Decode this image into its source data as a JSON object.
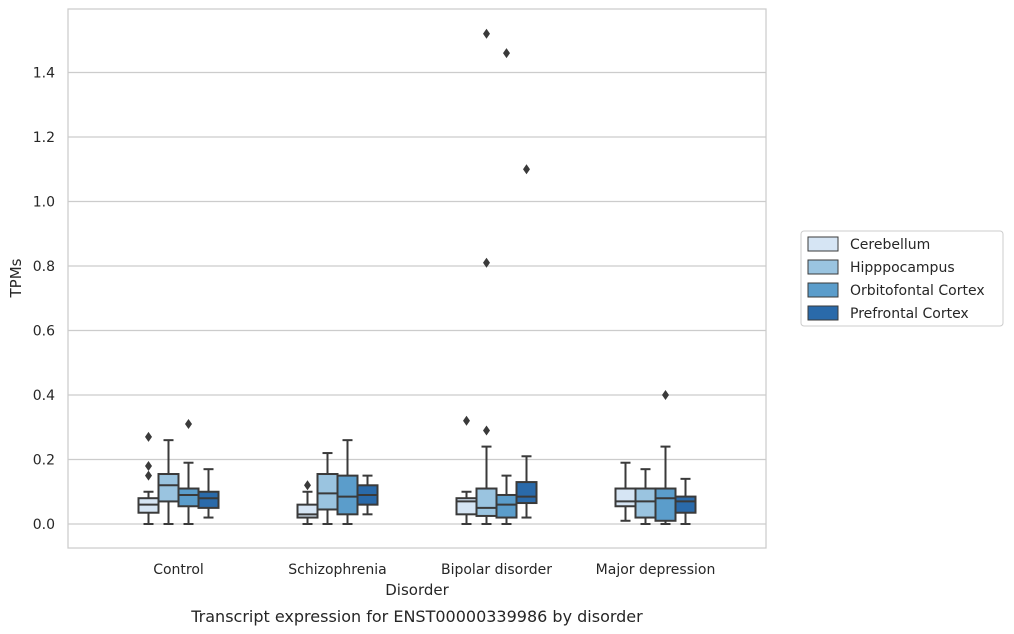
{
  "chart_data": {
    "type": "box",
    "caption": "Transcript expression for ENST00000339986 by disorder",
    "xlabel": "Disorder",
    "ylabel": "TPMs",
    "ylim": [
      -0.075,
      1.6
    ],
    "yticks": [
      0.0,
      0.2,
      0.4,
      0.6,
      0.8,
      1.0,
      1.2,
      1.4
    ],
    "ytick_labels": [
      "0.0",
      "0.2",
      "0.4",
      "0.6",
      "0.8",
      "1.0",
      "1.2",
      "1.4"
    ],
    "grid": "horizontal",
    "legend_position": "right",
    "categories": [
      "Control",
      "Schizophrenia",
      "Bipolar disorder",
      "Major depression"
    ],
    "series": [
      {
        "name": "Cerebellum",
        "color": "#d6e5f4",
        "boxes": [
          {
            "whislo": 0.0,
            "q1": 0.035,
            "med": 0.06,
            "q3": 0.08,
            "whishi": 0.1,
            "fliers": [
              0.15,
              0.18,
              0.27
            ]
          },
          {
            "whislo": 0.0,
            "q1": 0.02,
            "med": 0.03,
            "q3": 0.06,
            "whishi": 0.1,
            "fliers": [
              0.12
            ]
          },
          {
            "whislo": 0.0,
            "q1": 0.03,
            "med": 0.07,
            "q3": 0.08,
            "whishi": 0.1,
            "fliers": [
              0.32
            ]
          },
          {
            "whislo": 0.01,
            "q1": 0.055,
            "med": 0.07,
            "q3": 0.11,
            "whishi": 0.19,
            "fliers": []
          }
        ]
      },
      {
        "name": "Hipppocampus",
        "color": "#9ac4e0",
        "boxes": [
          {
            "whislo": 0.0,
            "q1": 0.07,
            "med": 0.12,
            "q3": 0.155,
            "whishi": 0.26,
            "fliers": []
          },
          {
            "whislo": 0.0,
            "q1": 0.045,
            "med": 0.095,
            "q3": 0.155,
            "whishi": 0.22,
            "fliers": []
          },
          {
            "whislo": 0.0,
            "q1": 0.025,
            "med": 0.05,
            "q3": 0.11,
            "whishi": 0.24,
            "fliers": [
              0.29,
              0.81,
              1.52
            ]
          },
          {
            "whislo": 0.0,
            "q1": 0.02,
            "med": 0.07,
            "q3": 0.11,
            "whishi": 0.17,
            "fliers": []
          }
        ]
      },
      {
        "name": "Orbitofontal Cortex",
        "color": "#5b9dcb",
        "boxes": [
          {
            "whislo": 0.0,
            "q1": 0.055,
            "med": 0.09,
            "q3": 0.11,
            "whishi": 0.19,
            "fliers": [
              0.31
            ]
          },
          {
            "whislo": 0.0,
            "q1": 0.03,
            "med": 0.085,
            "q3": 0.15,
            "whishi": 0.26,
            "fliers": []
          },
          {
            "whislo": 0.0,
            "q1": 0.02,
            "med": 0.06,
            "q3": 0.09,
            "whishi": 0.15,
            "fliers": [
              1.46
            ]
          },
          {
            "whislo": 0.0,
            "q1": 0.01,
            "med": 0.08,
            "q3": 0.11,
            "whishi": 0.24,
            "fliers": [
              0.4
            ]
          }
        ]
      },
      {
        "name": "Prefrontal Cortex",
        "color": "#2a6aaa",
        "boxes": [
          {
            "whislo": 0.02,
            "q1": 0.05,
            "med": 0.08,
            "q3": 0.1,
            "whishi": 0.17,
            "fliers": []
          },
          {
            "whislo": 0.03,
            "q1": 0.06,
            "med": 0.09,
            "q3": 0.12,
            "whishi": 0.15,
            "fliers": []
          },
          {
            "whislo": 0.02,
            "q1": 0.065,
            "med": 0.085,
            "q3": 0.13,
            "whishi": 0.21,
            "fliers": [
              1.1
            ]
          },
          {
            "whislo": 0.0,
            "q1": 0.035,
            "med": 0.07,
            "q3": 0.085,
            "whishi": 0.14,
            "fliers": []
          }
        ]
      }
    ]
  }
}
